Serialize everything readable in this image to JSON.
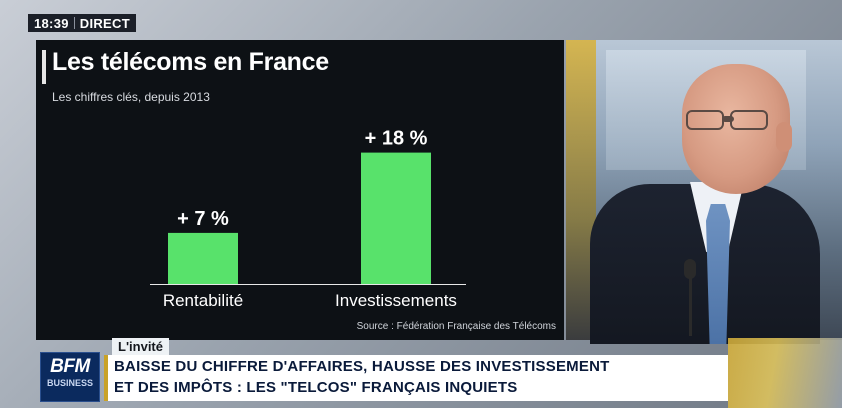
{
  "clock": {
    "time": "18:39",
    "status": "DIRECT"
  },
  "chart_data": {
    "type": "bar",
    "title": "Les télécoms en France",
    "subtitle": "Les chiffres clés, depuis 2013",
    "categories": [
      "Rentabilité",
      "Investissements"
    ],
    "values": [
      7,
      18
    ],
    "value_labels": [
      "+ 7 %",
      "+ 18 %"
    ],
    "ylim": [
      0,
      20
    ],
    "grid": false,
    "bar_color": "#58e26b",
    "source": "Source : Fédération Française des Télécoms"
  },
  "lower_third": {
    "tag": "L'invité",
    "line1": "BAISSE DU CHIFFRE D'AFFAIRES, HAUSSE DES INVESTISSEMENT",
    "line2": "ET DES IMPÔTS : LES \"TELCOS\" FRANÇAIS INQUIETS"
  },
  "logo": {
    "brand": "BFM",
    "sub": "BUSINESS"
  }
}
